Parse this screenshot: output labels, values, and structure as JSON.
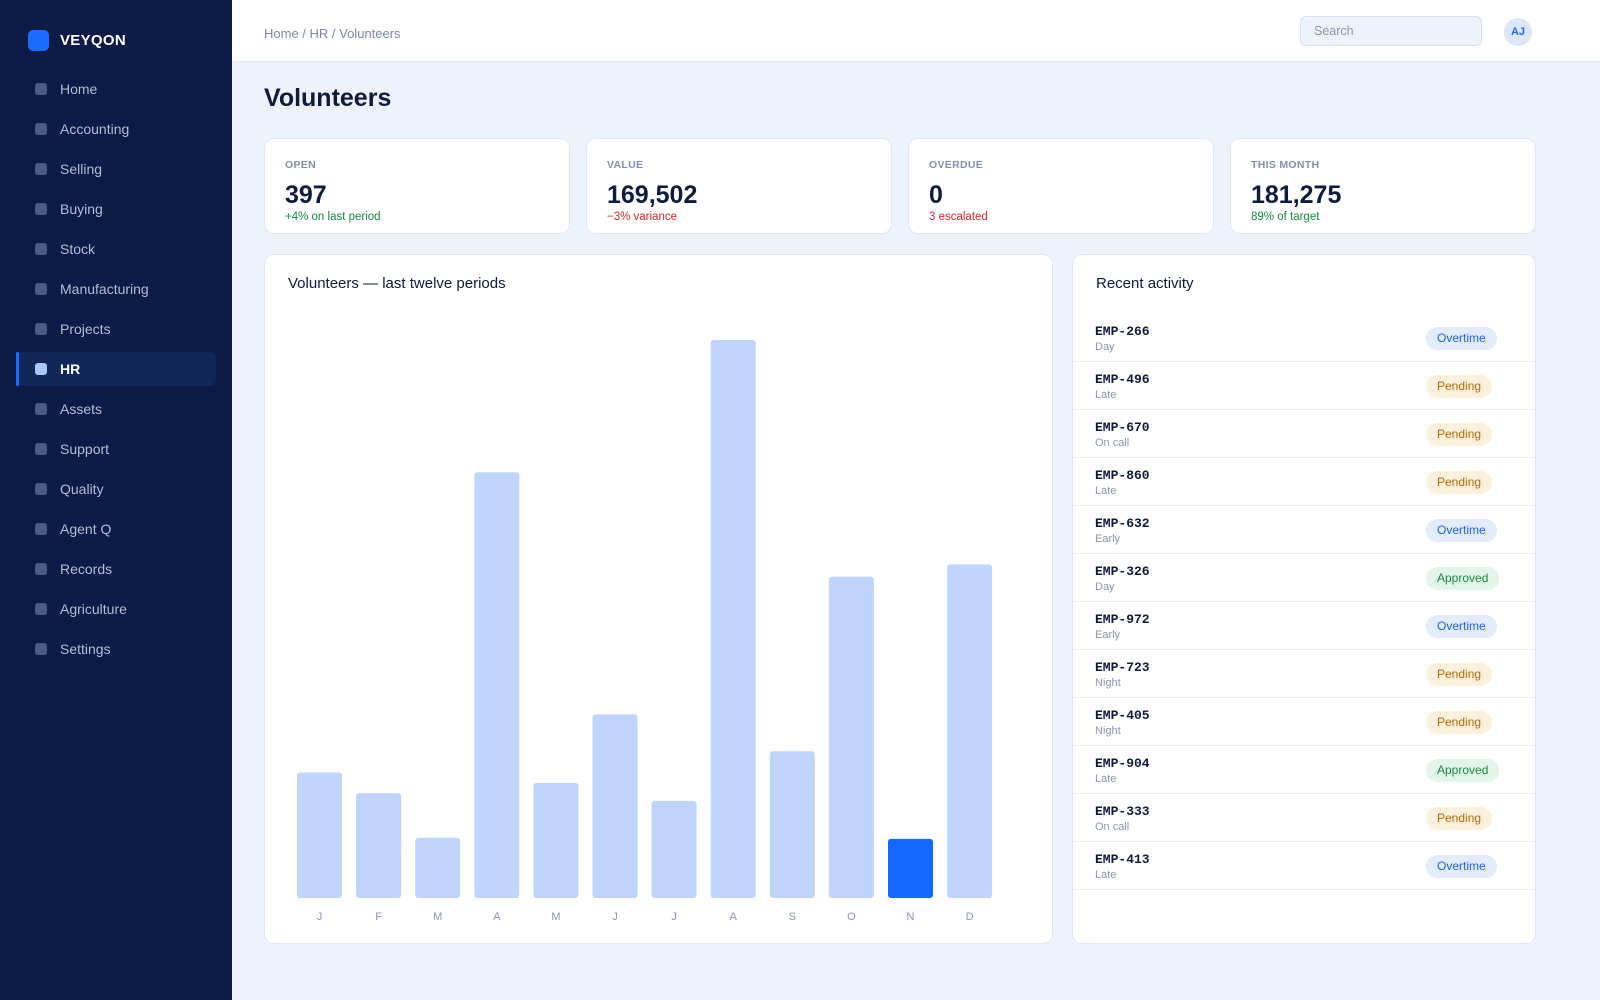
{
  "brand": {
    "name": "VEYQON"
  },
  "sidebar": {
    "items": [
      {
        "label": "Home",
        "active": false
      },
      {
        "label": "Accounting",
        "active": false
      },
      {
        "label": "Selling",
        "active": false
      },
      {
        "label": "Buying",
        "active": false
      },
      {
        "label": "Stock",
        "active": false
      },
      {
        "label": "Manufacturing",
        "active": false
      },
      {
        "label": "Projects",
        "active": false
      },
      {
        "label": "HR",
        "active": true
      },
      {
        "label": "Assets",
        "active": false
      },
      {
        "label": "Support",
        "active": false
      },
      {
        "label": "Quality",
        "active": false
      },
      {
        "label": "Agent Q",
        "active": false
      },
      {
        "label": "Records",
        "active": false
      },
      {
        "label": "Agriculture",
        "active": false
      },
      {
        "label": "Settings",
        "active": false
      }
    ]
  },
  "header": {
    "breadcrumb": "Home / HR / Volunteers",
    "search_placeholder": "Search",
    "avatar_initials": "AJ"
  },
  "page": {
    "title": "Volunteers"
  },
  "stats": [
    {
      "label": "OPEN",
      "value": "397",
      "delta": "+4% on last period",
      "trend": "positive"
    },
    {
      "label": "VALUE",
      "value": "169,502",
      "delta": "−3% variance",
      "trend": "negative"
    },
    {
      "label": "OVERDUE",
      "value": "0",
      "delta": "3 escalated",
      "trend": "negative"
    },
    {
      "label": "THIS MONTH",
      "value": "181,275",
      "delta": "89% of target",
      "trend": "positive"
    }
  ],
  "chart": {
    "title": "Volunteers — last twelve periods"
  },
  "chart_data": {
    "type": "bar",
    "title": "Volunteers — last twelve periods",
    "categories": [
      "J",
      "F",
      "M",
      "A",
      "M",
      "J",
      "J",
      "A",
      "S",
      "O",
      "N",
      "D"
    ],
    "values": [
      22.5,
      18.8,
      10.8,
      76.3,
      20.6,
      32.9,
      17.4,
      100,
      26.3,
      57.6,
      10.6,
      59.8
    ],
    "highlight_index": 10,
    "colors": {
      "bar": "#bfd5fc",
      "highlight": "#1467ff"
    },
    "xlabel": "",
    "ylabel": "",
    "ylim": [
      0,
      100
    ],
    "grid": false
  },
  "activity": {
    "title": "Recent activity",
    "items": [
      {
        "id": "EMP-266",
        "shift": "Day",
        "status": "Overtime",
        "kind": "overtime"
      },
      {
        "id": "EMP-496",
        "shift": "Late",
        "status": "Pending",
        "kind": "pending"
      },
      {
        "id": "EMP-670",
        "shift": "On call",
        "status": "Pending",
        "kind": "pending"
      },
      {
        "id": "EMP-860",
        "shift": "Late",
        "status": "Pending",
        "kind": "pending"
      },
      {
        "id": "EMP-632",
        "shift": "Early",
        "status": "Overtime",
        "kind": "overtime"
      },
      {
        "id": "EMP-326",
        "shift": "Day",
        "status": "Approved",
        "kind": "approved"
      },
      {
        "id": "EMP-972",
        "shift": "Early",
        "status": "Overtime",
        "kind": "overtime"
      },
      {
        "id": "EMP-723",
        "shift": "Night",
        "status": "Pending",
        "kind": "pending"
      },
      {
        "id": "EMP-405",
        "shift": "Night",
        "status": "Pending",
        "kind": "pending"
      },
      {
        "id": "EMP-904",
        "shift": "Late",
        "status": "Approved",
        "kind": "approved"
      },
      {
        "id": "EMP-333",
        "shift": "On call",
        "status": "Pending",
        "kind": "pending"
      },
      {
        "id": "EMP-413",
        "shift": "Late",
        "status": "Overtime",
        "kind": "overtime"
      }
    ]
  }
}
